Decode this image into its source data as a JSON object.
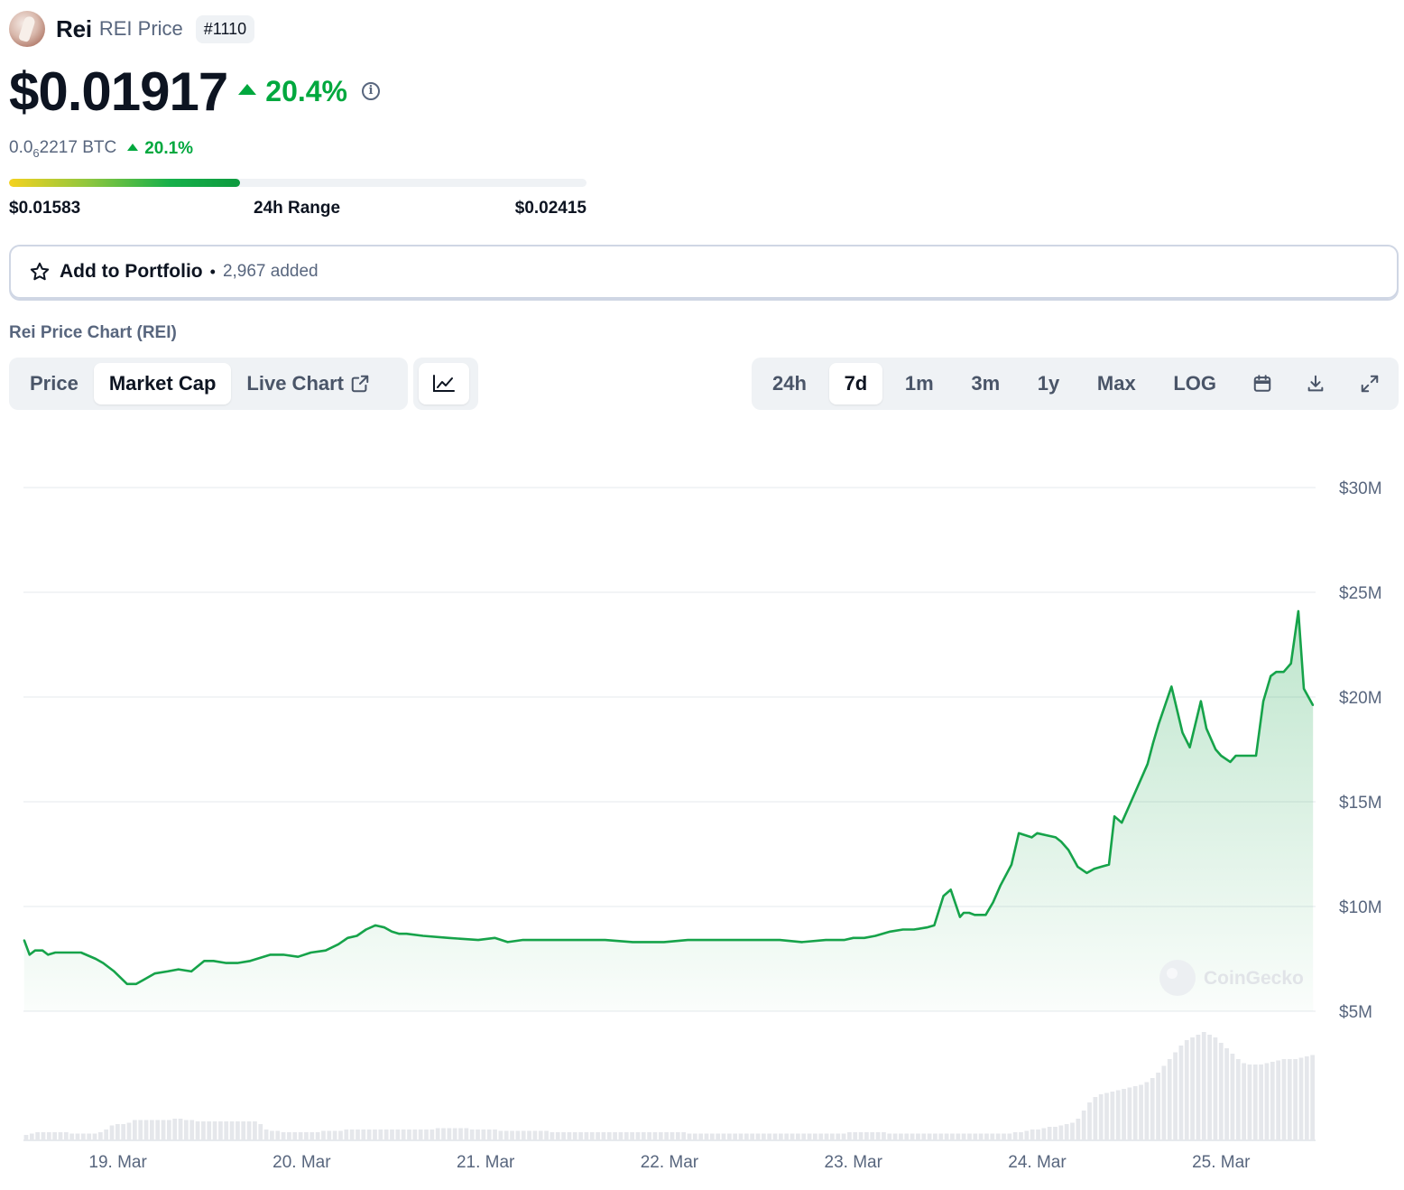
{
  "header": {
    "name": "Rei",
    "subtitle": "REI Price",
    "rank": "#1110"
  },
  "price": {
    "value": "$0.01917",
    "change": "20.4%",
    "btc_prefix": "0.0",
    "btc_subscript": "6",
    "btc_suffix": "2217 BTC",
    "btc_change": "20.1%"
  },
  "range": {
    "low": "$0.01583",
    "label": "24h Range",
    "high": "$0.02415",
    "current_fraction": 0.4
  },
  "portfolio": {
    "label": "Add to Portfolio",
    "separator": "•",
    "count": "2,967 added"
  },
  "chart_section": {
    "title": "Rei Price Chart (REI)",
    "view_tabs": [
      {
        "label": "Price",
        "active": false
      },
      {
        "label": "Market Cap",
        "active": true
      },
      {
        "label": "Live Chart",
        "active": false
      }
    ],
    "range_tabs": [
      {
        "label": "24h",
        "active": false
      },
      {
        "label": "7d",
        "active": true
      },
      {
        "label": "1m",
        "active": false
      },
      {
        "label": "3m",
        "active": false
      },
      {
        "label": "1y",
        "active": false
      },
      {
        "label": "Max",
        "active": false
      },
      {
        "label": "LOG",
        "active": false
      }
    ],
    "watermark": "CoinGecko"
  },
  "colors": {
    "up": "#00a83e",
    "line": "#16a34a",
    "volume": "#e5e7eb",
    "grid": "#eef0f3"
  },
  "chart_data": {
    "type": "area",
    "ylabels": [
      "$30M",
      "$25M",
      "$20M",
      "$15M",
      "$10M",
      "$5M"
    ],
    "yticks": [
      30,
      25,
      20,
      15,
      10,
      5
    ],
    "ylim": [
      5,
      30
    ],
    "xlabels": [
      "19. Mar",
      "20. Mar",
      "21. Mar",
      "22. Mar",
      "23. Mar",
      "24. Mar",
      "25. Mar"
    ],
    "xlim": [
      18.4867,
      25.5139
    ],
    "series": [
      {
        "x": [
          18.49,
          18.52,
          18.55,
          18.59,
          18.62,
          18.66,
          18.72,
          18.8,
          18.88,
          18.92,
          18.98,
          19.05,
          19.1,
          19.14,
          19.2,
          19.27,
          19.33,
          19.4,
          19.47,
          19.52,
          19.59,
          19.65,
          19.72,
          19.83,
          19.9,
          19.98,
          20.05,
          20.13,
          20.2,
          20.25,
          20.3,
          20.35,
          20.4,
          20.45,
          20.49,
          20.53,
          20.57,
          20.66,
          20.8,
          20.96,
          21.05,
          21.12,
          21.2,
          21.27,
          21.35,
          21.5,
          21.65,
          21.8,
          21.97,
          22.1,
          22.25,
          22.43,
          22.6,
          22.72,
          22.85,
          22.95,
          23.0,
          23.06,
          23.12,
          23.2,
          23.27,
          23.33,
          23.4,
          23.44,
          23.49,
          23.53,
          23.58,
          23.6,
          23.63,
          23.66,
          23.72,
          23.76,
          23.8,
          23.86,
          23.9,
          23.97,
          24.0,
          24.05,
          24.1,
          24.13,
          24.17,
          24.22,
          24.27,
          24.31,
          24.35,
          24.39,
          24.42,
          24.46,
          24.52,
          24.57,
          24.6,
          24.63,
          24.66,
          24.73,
          24.79,
          24.83,
          24.89,
          24.92,
          24.97,
          25.0,
          25.05,
          25.08,
          25.12,
          25.16,
          25.19,
          25.23,
          25.27,
          25.3,
          25.34,
          25.38,
          25.42,
          25.45,
          25.5
        ],
        "values": [
          8.4,
          7.7,
          7.9,
          7.9,
          7.7,
          7.8,
          7.8,
          7.8,
          7.5,
          7.3,
          6.9,
          6.3,
          6.3,
          6.5,
          6.8,
          6.9,
          7.0,
          6.9,
          7.4,
          7.4,
          7.3,
          7.3,
          7.4,
          7.7,
          7.7,
          7.6,
          7.8,
          7.9,
          8.2,
          8.5,
          8.6,
          8.9,
          9.1,
          9.0,
          8.8,
          8.7,
          8.7,
          8.6,
          8.5,
          8.4,
          8.5,
          8.3,
          8.4,
          8.4,
          8.4,
          8.4,
          8.4,
          8.3,
          8.3,
          8.4,
          8.4,
          8.4,
          8.4,
          8.3,
          8.4,
          8.4,
          8.5,
          8.5,
          8.6,
          8.8,
          8.9,
          8.9,
          9.0,
          9.1,
          10.5,
          10.8,
          9.5,
          9.7,
          9.7,
          9.6,
          9.6,
          10.2,
          11.0,
          12.0,
          13.5,
          13.3,
          13.5,
          13.4,
          13.3,
          13.1,
          12.7,
          11.9,
          11.6,
          11.8,
          11.9,
          12.0,
          14.3,
          14.0,
          15.2,
          16.2,
          16.8,
          17.8,
          18.7,
          20.5,
          18.3,
          17.6,
          19.8,
          18.5,
          17.5,
          17.2,
          16.9,
          17.2,
          17.2,
          17.2,
          17.2,
          19.8,
          21.0,
          21.2,
          21.2,
          21.6,
          24.1,
          20.4,
          19.6
        ]
      }
    ],
    "volume_relative": [
      0.04,
      0.05,
      0.06,
      0.06,
      0.06,
      0.06,
      0.06,
      0.06,
      0.05,
      0.05,
      0.05,
      0.05,
      0.05,
      0.06,
      0.08,
      0.11,
      0.12,
      0.12,
      0.13,
      0.15,
      0.15,
      0.15,
      0.15,
      0.15,
      0.15,
      0.15,
      0.16,
      0.16,
      0.15,
      0.15,
      0.14,
      0.14,
      0.14,
      0.14,
      0.14,
      0.14,
      0.14,
      0.14,
      0.14,
      0.14,
      0.14,
      0.12,
      0.08,
      0.07,
      0.07,
      0.06,
      0.06,
      0.06,
      0.06,
      0.06,
      0.06,
      0.06,
      0.07,
      0.07,
      0.07,
      0.07,
      0.08,
      0.08,
      0.08,
      0.08,
      0.08,
      0.08,
      0.08,
      0.08,
      0.08,
      0.08,
      0.08,
      0.08,
      0.08,
      0.08,
      0.08,
      0.08,
      0.09,
      0.09,
      0.09,
      0.09,
      0.09,
      0.09,
      0.08,
      0.08,
      0.08,
      0.08,
      0.08,
      0.07,
      0.07,
      0.07,
      0.07,
      0.07,
      0.07,
      0.07,
      0.07,
      0.07,
      0.06,
      0.06,
      0.06,
      0.06,
      0.06,
      0.06,
      0.06,
      0.06,
      0.06,
      0.06,
      0.06,
      0.06,
      0.06,
      0.06,
      0.06,
      0.06,
      0.06,
      0.06,
      0.06,
      0.06,
      0.06,
      0.06,
      0.06,
      0.06,
      0.05,
      0.05,
      0.05,
      0.05,
      0.05,
      0.05,
      0.05,
      0.05,
      0.05,
      0.05,
      0.05,
      0.05,
      0.05,
      0.05,
      0.05,
      0.05,
      0.05,
      0.05,
      0.05,
      0.05,
      0.05,
      0.05,
      0.05,
      0.05,
      0.05,
      0.05,
      0.05,
      0.05,
      0.06,
      0.06,
      0.06,
      0.06,
      0.06,
      0.06,
      0.06,
      0.05,
      0.05,
      0.05,
      0.05,
      0.05,
      0.05,
      0.05,
      0.05,
      0.05,
      0.05,
      0.05,
      0.05,
      0.05,
      0.05,
      0.05,
      0.05,
      0.05,
      0.05,
      0.05,
      0.05,
      0.05,
      0.05,
      0.06,
      0.06,
      0.07,
      0.08,
      0.08,
      0.09,
      0.1,
      0.1,
      0.11,
      0.12,
      0.13,
      0.16,
      0.22,
      0.28,
      0.32,
      0.34,
      0.35,
      0.36,
      0.37,
      0.38,
      0.39,
      0.4,
      0.41,
      0.43,
      0.46,
      0.5,
      0.55,
      0.6,
      0.65,
      0.7,
      0.74,
      0.76,
      0.78,
      0.8,
      0.78,
      0.76,
      0.72,
      0.68,
      0.64,
      0.6,
      0.57,
      0.56,
      0.56,
      0.56,
      0.57,
      0.58,
      0.59,
      0.6,
      0.6,
      0.6,
      0.61,
      0.62,
      0.63
    ],
    "grid": true,
    "legend": "none"
  }
}
